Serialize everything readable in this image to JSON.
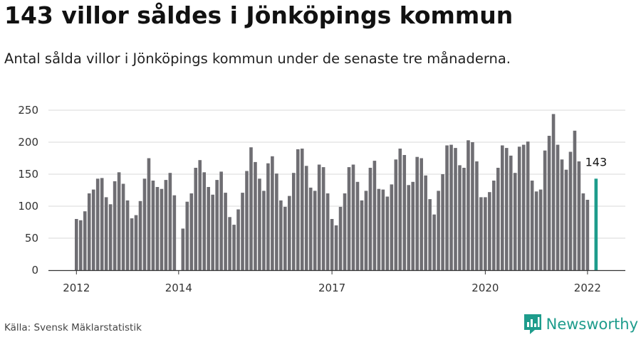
{
  "title": "143 villor såldes i Jönköpings kommun",
  "subtitle": "Antal sålda villor i Jönköpings kommun under de senaste tre månaderna.",
  "source": "Källa: Svensk Mäklarstatistik",
  "brand": {
    "name": "Newsworthy",
    "icon": "newsworthy-logo-icon",
    "color": "#1e9c8c"
  },
  "chart_data": {
    "type": "bar",
    "title": "143 villor såldes i Jönköpings kommun",
    "xlabel": "",
    "ylabel": "",
    "ylim": [
      0,
      250
    ],
    "yticks": [
      0,
      50,
      100,
      150,
      200,
      250
    ],
    "xticks": [
      {
        "label": "2012",
        "index": 0
      },
      {
        "label": "2014",
        "index": 24
      },
      {
        "label": "2017",
        "index": 60
      },
      {
        "label": "2020",
        "index": 96
      },
      {
        "label": "2022",
        "index": 120
      }
    ],
    "grid": true,
    "bar_color": "#6f6e73",
    "highlight_color": "#1e9c8c",
    "highlight_index": 122,
    "highlight_label": "143",
    "start_period": "2012-01",
    "values": [
      80,
      78,
      92,
      120,
      126,
      143,
      144,
      114,
      103,
      139,
      153,
      135,
      109,
      81,
      86,
      108,
      143,
      175,
      140,
      130,
      127,
      141,
      152,
      117,
      0,
      65,
      107,
      120,
      160,
      172,
      153,
      130,
      118,
      141,
      154,
      121,
      83,
      71,
      95,
      121,
      155,
      192,
      169,
      143,
      124,
      167,
      178,
      151,
      109,
      99,
      116,
      152,
      189,
      190,
      163,
      129,
      124,
      165,
      161,
      120,
      80,
      70,
      99,
      120,
      161,
      165,
      138,
      109,
      124,
      160,
      171,
      127,
      126,
      115,
      134,
      173,
      190,
      180,
      133,
      138,
      177,
      175,
      148,
      111,
      87,
      124,
      150,
      195,
      196,
      191,
      164,
      160,
      203,
      200,
      170,
      114,
      114,
      122,
      140,
      160,
      195,
      191,
      179,
      152,
      193,
      196,
      201,
      140,
      123,
      126,
      187,
      210,
      244,
      196,
      173,
      157,
      185,
      218,
      170,
      120,
      110,
      0,
      143
    ]
  }
}
